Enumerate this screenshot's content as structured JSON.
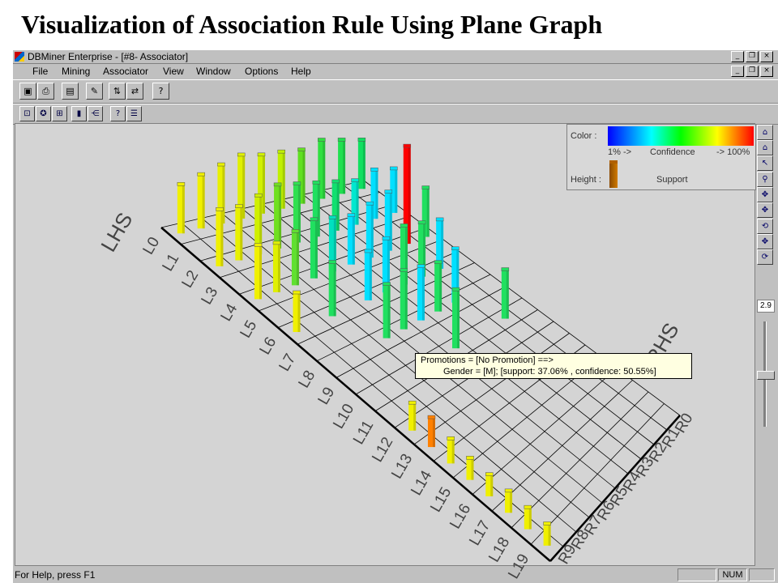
{
  "slide": {
    "title": "Visualization of Association Rule Using Plane Graph"
  },
  "window": {
    "title": "DBMiner Enterprise - [#8- Associator]"
  },
  "menu": [
    "File",
    "Mining",
    "Associator",
    "View",
    "Window",
    "Options",
    "Help"
  ],
  "toolbar1": [
    {
      "name": "save-icon",
      "glyph": "▣"
    },
    {
      "name": "print-icon",
      "glyph": "⎙"
    },
    {
      "name": "table-icon",
      "glyph": "▤"
    },
    {
      "name": "wand-icon",
      "glyph": "✎"
    },
    {
      "name": "split-icon",
      "glyph": "⇅"
    },
    {
      "name": "arrows-icon",
      "glyph": "⇄"
    },
    {
      "name": "help-icon",
      "glyph": "?"
    }
  ],
  "toolbar2": [
    {
      "name": "properties-icon",
      "glyph": "⊡"
    },
    {
      "name": "rotate-icon",
      "glyph": "✪"
    },
    {
      "name": "grid-icon",
      "glyph": "⊞"
    },
    {
      "name": "bars-icon",
      "glyph": "▮"
    },
    {
      "name": "tree-icon",
      "glyph": "⋲"
    },
    {
      "name": "query-icon",
      "glyph": "?"
    },
    {
      "name": "list-icon",
      "glyph": "☰"
    }
  ],
  "right_tools": [
    {
      "name": "home-icon",
      "glyph": "⌂"
    },
    {
      "name": "home2-icon",
      "glyph": "⌂"
    },
    {
      "name": "pointer-icon",
      "glyph": "↖"
    },
    {
      "name": "zoom-icon",
      "glyph": "⚲"
    },
    {
      "name": "pan-icon",
      "glyph": "✥"
    },
    {
      "name": "move-icon",
      "glyph": "✥"
    },
    {
      "name": "rotate-x-icon",
      "glyph": "⟲"
    },
    {
      "name": "move2-icon",
      "glyph": "✥"
    },
    {
      "name": "rotate-y-icon",
      "glyph": "⟳"
    }
  ],
  "zoom_value": "2.9",
  "legend": {
    "color_label": "Color :",
    "min_label": "1% ->",
    "metric_label": "Confidence",
    "max_label": "-> 100%",
    "height_label": "Height :",
    "height_metric": "Support"
  },
  "axis": {
    "lhs_label": "LHS",
    "rhs_label": "RHS"
  },
  "lhs_ticks": [
    "L0",
    "L1",
    "L2",
    "L3",
    "L4",
    "L5",
    "L6",
    "L7",
    "L8",
    "L9",
    "L10",
    "L11",
    "L12",
    "L13",
    "L14",
    "L15",
    "L16",
    "L17",
    "L18",
    "L19"
  ],
  "rhs_ticks": [
    "R0",
    "R1",
    "R2",
    "R3",
    "R4",
    "R5",
    "R6",
    "R7",
    "R8",
    "R9"
  ],
  "tooltip": {
    "line1": "Promotions = [No Promotion] ==>",
    "line2": "Gender = [M];  [support: 37.06% , confidence: 50.55%]"
  },
  "colors": {
    "canvas": "#d4d4d4",
    "grid": "#000000",
    "yellow": "#ffff00",
    "green": "#00dd44",
    "cyan": "#00e0ff",
    "red": "#ff0000",
    "orange": "#ff8000"
  },
  "bars": [
    {
      "l": 0,
      "r": 9,
      "h": 0.5,
      "c": "#f0f000"
    },
    {
      "l": 0,
      "r": 8,
      "h": 0.55,
      "c": "#f0f000"
    },
    {
      "l": 0,
      "r": 7,
      "h": 0.6,
      "c": "#e8f000"
    },
    {
      "l": 0,
      "r": 6,
      "h": 0.65,
      "c": "#e0f000"
    },
    {
      "l": 0,
      "r": 5,
      "h": 0.6,
      "c": "#d0f000"
    },
    {
      "l": 0,
      "r": 4,
      "h": 0.58,
      "c": "#c0f000"
    },
    {
      "l": 0,
      "r": 3,
      "h": 0.55,
      "c": "#60e020"
    },
    {
      "l": 0,
      "r": 2,
      "h": 0.6,
      "c": "#30e040"
    },
    {
      "l": 0,
      "r": 1,
      "h": 0.55,
      "c": "#20e050"
    },
    {
      "l": 0,
      "r": 0,
      "h": 0.5,
      "c": "#10e060"
    },
    {
      "l": 2,
      "r": 9,
      "h": 0.58,
      "c": "#f0f000"
    },
    {
      "l": 2,
      "r": 8,
      "h": 0.55,
      "c": "#e8f000"
    },
    {
      "l": 2,
      "r": 7,
      "h": 0.6,
      "c": "#d0f000"
    },
    {
      "l": 2,
      "r": 6,
      "h": 0.65,
      "c": "#70e020"
    },
    {
      "l": 2,
      "r": 5,
      "h": 0.6,
      "c": "#30e050"
    },
    {
      "l": 2,
      "r": 4,
      "h": 0.55,
      "c": "#20e060"
    },
    {
      "l": 2,
      "r": 3,
      "h": 0.5,
      "c": "#10e070"
    },
    {
      "l": 2,
      "r": 2,
      "h": 0.45,
      "c": "#00e8d0"
    },
    {
      "l": 2,
      "r": 1,
      "h": 0.5,
      "c": "#00e0ff"
    },
    {
      "l": 2,
      "r": 0,
      "h": 0.45,
      "c": "#00e0ff"
    },
    {
      "l": 4,
      "r": 9,
      "h": 0.55,
      "c": "#f0f000"
    },
    {
      "l": 4,
      "r": 8,
      "h": 0.5,
      "c": "#e0f000"
    },
    {
      "l": 4,
      "r": 7,
      "h": 0.55,
      "c": "#60e030"
    },
    {
      "l": 4,
      "r": 6,
      "h": 0.6,
      "c": "#20e060"
    },
    {
      "l": 4,
      "r": 5,
      "h": 0.55,
      "c": "#00e0c0"
    },
    {
      "l": 4,
      "r": 4,
      "h": 0.5,
      "c": "#00e0ff"
    },
    {
      "l": 4,
      "r": 3,
      "h": 0.55,
      "c": "#00e0ff"
    },
    {
      "l": 4,
      "r": 2,
      "h": 0.6,
      "c": "#00e0ff"
    },
    {
      "l": 4,
      "r": 1,
      "h": 1.0,
      "c": "#ff0000"
    },
    {
      "l": 4,
      "r": 0,
      "h": 0.5,
      "c": "#20e060"
    },
    {
      "l": 6,
      "r": 9,
      "h": 0.4,
      "c": "#f0f000"
    },
    {
      "l": 6,
      "r": 7,
      "h": 0.55,
      "c": "#20e060"
    },
    {
      "l": 6,
      "r": 5,
      "h": 0.5,
      "c": "#00e0ff"
    },
    {
      "l": 6,
      "r": 4,
      "h": 0.55,
      "c": "#00e0ff"
    },
    {
      "l": 6,
      "r": 3,
      "h": 0.6,
      "c": "#20e060"
    },
    {
      "l": 6,
      "r": 2,
      "h": 0.55,
      "c": "#20e060"
    },
    {
      "l": 6,
      "r": 1,
      "h": 0.5,
      "c": "#00e0ff"
    },
    {
      "l": 8,
      "r": 6,
      "h": 0.55,
      "c": "#20e060"
    },
    {
      "l": 8,
      "r": 5,
      "h": 0.6,
      "c": "#20e060"
    },
    {
      "l": 8,
      "r": 4,
      "h": 0.55,
      "c": "#00e0ff"
    },
    {
      "l": 8,
      "r": 3,
      "h": 0.5,
      "c": "#20e060"
    },
    {
      "l": 8,
      "r": 2,
      "h": 0.55,
      "c": "#00e0ff"
    },
    {
      "l": 10,
      "r": 4,
      "h": 0.6,
      "c": "#20e060"
    },
    {
      "l": 10,
      "r": 1,
      "h": 0.5,
      "c": "#20e060"
    },
    {
      "l": 12,
      "r": 9,
      "h": 0.28,
      "c": "#f0f000"
    },
    {
      "l": 13,
      "r": 9,
      "h": 0.3,
      "c": "#ff8000"
    },
    {
      "l": 14,
      "r": 9,
      "h": 0.25,
      "c": "#f0f000"
    },
    {
      "l": 15,
      "r": 9,
      "h": 0.22,
      "c": "#f0f000"
    },
    {
      "l": 16,
      "r": 9,
      "h": 0.22,
      "c": "#f0f000"
    },
    {
      "l": 17,
      "r": 9,
      "h": 0.22,
      "c": "#f0f000"
    },
    {
      "l": 18,
      "r": 9,
      "h": 0.22,
      "c": "#f0f000"
    },
    {
      "l": 19,
      "r": 9,
      "h": 0.22,
      "c": "#f0f000"
    }
  ]
}
